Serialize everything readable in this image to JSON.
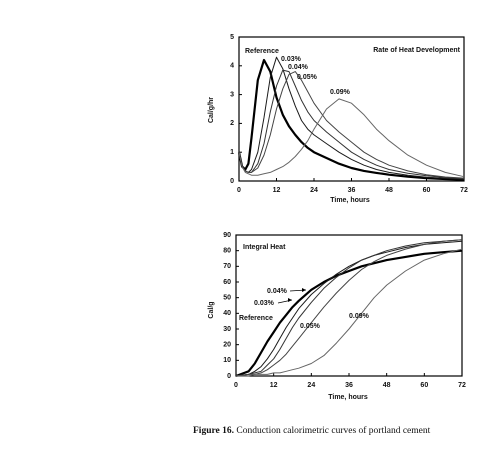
{
  "chart_data": [
    {
      "type": "line",
      "title": "Rate of Heat Development",
      "x_label": "Time, hours",
      "y_label": "Cal/g/hr",
      "x": [
        0,
        1,
        2,
        3,
        4,
        6,
        8,
        10,
        12,
        14,
        16,
        18,
        20,
        22,
        24,
        28,
        32,
        36,
        40,
        44,
        48,
        54,
        60,
        66,
        72
      ],
      "series": [
        {
          "name": "Reference",
          "color": "#000000",
          "line_width": 2.2,
          "values": [
            1.0,
            0.5,
            0.4,
            0.6,
            1.5,
            3.5,
            4.2,
            3.8,
            2.9,
            2.3,
            1.9,
            1.6,
            1.35,
            1.15,
            1.0,
            0.8,
            0.6,
            0.45,
            0.35,
            0.28,
            0.22,
            0.15,
            0.1,
            0.07,
            0.05
          ]
        },
        {
          "name": "0.03%",
          "color": "#1a1a1a",
          "line_width": 1,
          "values": [
            1.0,
            0.5,
            0.35,
            0.3,
            0.4,
            1.0,
            2.2,
            3.6,
            4.3,
            3.9,
            3.2,
            2.6,
            2.1,
            1.8,
            1.6,
            1.3,
            1.0,
            0.75,
            0.55,
            0.4,
            0.3,
            0.2,
            0.13,
            0.09,
            0.06
          ]
        },
        {
          "name": "0.04%",
          "color": "#333333",
          "line_width": 1,
          "values": [
            1.0,
            0.5,
            0.35,
            0.3,
            0.3,
            0.6,
            1.3,
            2.4,
            3.3,
            3.85,
            3.8,
            3.3,
            2.8,
            2.4,
            2.1,
            1.7,
            1.35,
            1.0,
            0.75,
            0.55,
            0.4,
            0.27,
            0.18,
            0.12,
            0.08
          ]
        },
        {
          "name": "0.05%",
          "color": "#444444",
          "line_width": 1,
          "values": [
            1.0,
            0.5,
            0.35,
            0.3,
            0.3,
            0.45,
            0.9,
            1.6,
            2.5,
            3.2,
            3.7,
            3.8,
            3.5,
            3.1,
            2.7,
            2.1,
            1.7,
            1.35,
            1.0,
            0.75,
            0.55,
            0.35,
            0.22,
            0.14,
            0.1
          ]
        },
        {
          "name": "0.09%",
          "color": "#666666",
          "line_width": 1,
          "values": [
            1.0,
            0.5,
            0.3,
            0.25,
            0.2,
            0.2,
            0.25,
            0.3,
            0.4,
            0.5,
            0.65,
            0.85,
            1.1,
            1.4,
            1.8,
            2.5,
            2.85,
            2.7,
            2.3,
            1.8,
            1.4,
            0.9,
            0.55,
            0.3,
            0.15
          ]
        }
      ],
      "xlim": [
        0,
        72
      ],
      "ylim": [
        0,
        5
      ],
      "xticks": [
        0,
        12,
        24,
        36,
        48,
        60,
        72
      ],
      "yticks": [
        0,
        1,
        2,
        3,
        4,
        5
      ]
    },
    {
      "type": "line",
      "title": "Integral Heat",
      "x_label": "Time, hours",
      "y_label": "Cal/g",
      "x": [
        0,
        4,
        6,
        8,
        10,
        12,
        14,
        16,
        18,
        20,
        24,
        28,
        32,
        36,
        40,
        44,
        48,
        54,
        60,
        66,
        72
      ],
      "series": [
        {
          "name": "Reference",
          "color": "#000000",
          "line_width": 2.2,
          "values": [
            0,
            3,
            8,
            15,
            22,
            28,
            34,
            39,
            44,
            48,
            55,
            60,
            64,
            67,
            70,
            72,
            74,
            76,
            78,
            79,
            80
          ]
        },
        {
          "name": "0.03%",
          "color": "#1a1a1a",
          "line_width": 1,
          "values": [
            0,
            1,
            3,
            6,
            11,
            17,
            24,
            31,
            37,
            43,
            52,
            59,
            65,
            70,
            74,
            77,
            79,
            82,
            84,
            85,
            86
          ]
        },
        {
          "name": "0.04%",
          "color": "#333333",
          "line_width": 1,
          "values": [
            0,
            1,
            2,
            3,
            7,
            11,
            17,
            24,
            31,
            37,
            47,
            56,
            63,
            69,
            74,
            77,
            80,
            83,
            85,
            86,
            87
          ]
        },
        {
          "name": "0.05%",
          "color": "#444444",
          "line_width": 1,
          "values": [
            0,
            1,
            1,
            2,
            4,
            7,
            10,
            14,
            19,
            24,
            34,
            44,
            53,
            61,
            68,
            73,
            77,
            81,
            84,
            86,
            87
          ]
        },
        {
          "name": "0.09%",
          "color": "#666666",
          "line_width": 1,
          "values": [
            0,
            0,
            1,
            1,
            1,
            2,
            2,
            3,
            4,
            5,
            8,
            13,
            21,
            30,
            40,
            50,
            58,
            67,
            74,
            78,
            81
          ]
        }
      ],
      "xlim": [
        0,
        72
      ],
      "ylim": [
        0,
        90
      ],
      "xticks": [
        0,
        12,
        24,
        36,
        48,
        60,
        72
      ],
      "yticks": [
        0,
        10,
        20,
        30,
        40,
        50,
        60,
        70,
        80,
        90
      ]
    }
  ],
  "caption": {
    "label": "Figure 16.",
    "text": "Conduction calorimetric curves of portland cement"
  }
}
